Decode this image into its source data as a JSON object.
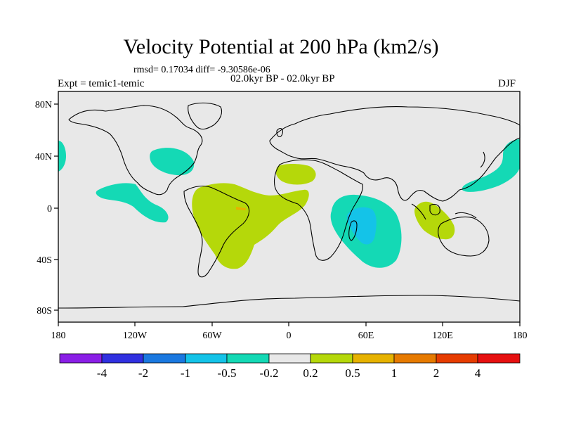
{
  "title": "Velocity Potential at 200 hPa (km2/s)",
  "stats_line": "rmsd= 0.17034 diff= -9.30586e-06",
  "experiment_label": "Expt = temic1-temic",
  "period_label": "02.0kyr BP - 02.0kyr BP",
  "season_label": "DJF",
  "map": {
    "lat_ticks": [
      "80N",
      "40N",
      "0",
      "40S",
      "80S"
    ],
    "lon_ticks": [
      "180",
      "120W",
      "60W",
      "0",
      "60E",
      "120E",
      "180"
    ]
  },
  "colorbar": {
    "labels": [
      "-4",
      "-2",
      "-1",
      "-0.5",
      "-0.2",
      "0.2",
      "0.5",
      "1",
      "2",
      "4"
    ],
    "colors": [
      "#8a1ee6",
      "#3030e0",
      "#1a78e0",
      "#14c3e8",
      "#14d9b5",
      "#e8e8e8",
      "#b5d80a",
      "#e6b200",
      "#e67a00",
      "#e63c00",
      "#e61010"
    ]
  }
}
